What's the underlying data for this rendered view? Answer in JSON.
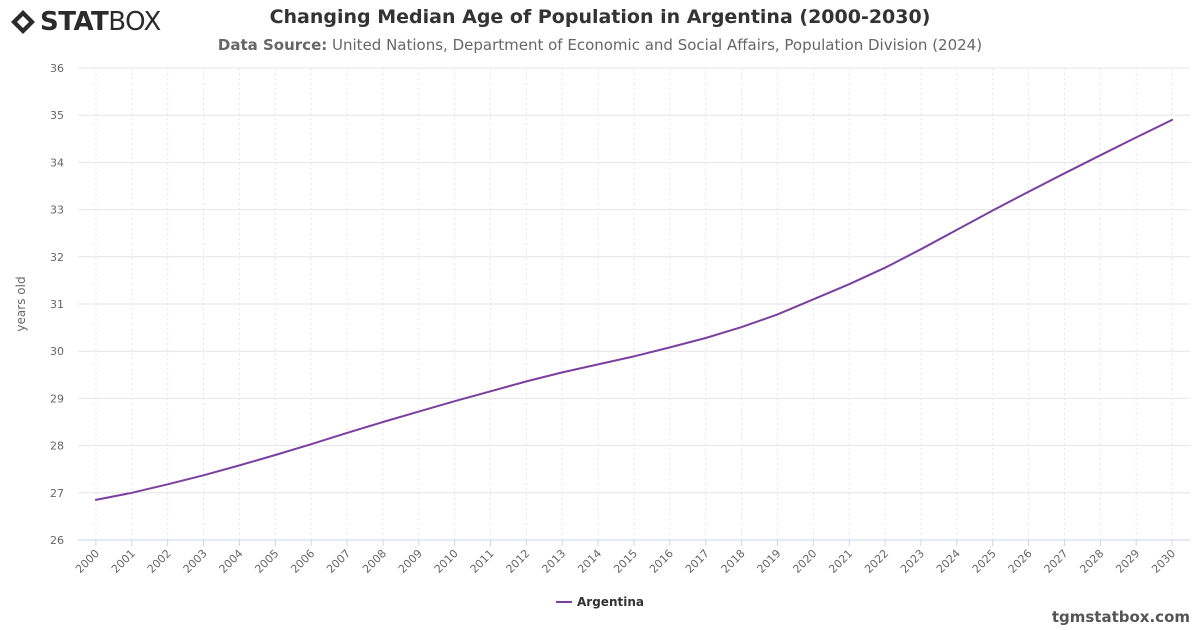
{
  "header": {
    "logo_text_bold": "STAT",
    "logo_text_light": "BOX",
    "title": "Changing Median Age of Population in Argentina (2000-2030)",
    "subtitle_label": "Data Source:",
    "subtitle_text": "United Nations, Department of Economic and Social Affairs, Population Division (2024)"
  },
  "legend": {
    "label": "Argentina"
  },
  "footer": {
    "text": "tgmstatbox.com"
  },
  "colors": {
    "series": "#7b3f9e",
    "grid": "#e6e6e6",
    "axis_text": "#666666"
  },
  "chart_data": {
    "type": "line",
    "title": "Changing Median Age of Population in Argentina (2000-2030)",
    "xlabel": "",
    "ylabel": "years old",
    "ylim": [
      26,
      36
    ],
    "yticks": [
      26,
      27,
      28,
      29,
      30,
      31,
      32,
      33,
      34,
      35,
      36
    ],
    "grid": true,
    "legend_position": "bottom",
    "x": [
      "2000",
      "2001",
      "2002",
      "2003",
      "2004",
      "2005",
      "2006",
      "2007",
      "2008",
      "2009",
      "2010",
      "2011",
      "2012",
      "2013",
      "2014",
      "2015",
      "2016",
      "2017",
      "2018",
      "2019",
      "2020",
      "2021",
      "2022",
      "2023",
      "2024",
      "2025",
      "2026",
      "2027",
      "2028",
      "2029",
      "2030"
    ],
    "series": [
      {
        "name": "Argentina",
        "values": [
          26.85,
          27.0,
          27.18,
          27.37,
          27.58,
          27.8,
          28.03,
          28.27,
          28.5,
          28.72,
          28.94,
          29.15,
          29.36,
          29.55,
          29.72,
          29.89,
          30.08,
          30.28,
          30.51,
          30.78,
          31.1,
          31.42,
          31.77,
          32.16,
          32.57,
          32.98,
          33.38,
          33.77,
          34.15,
          34.53,
          34.9
        ]
      }
    ]
  }
}
